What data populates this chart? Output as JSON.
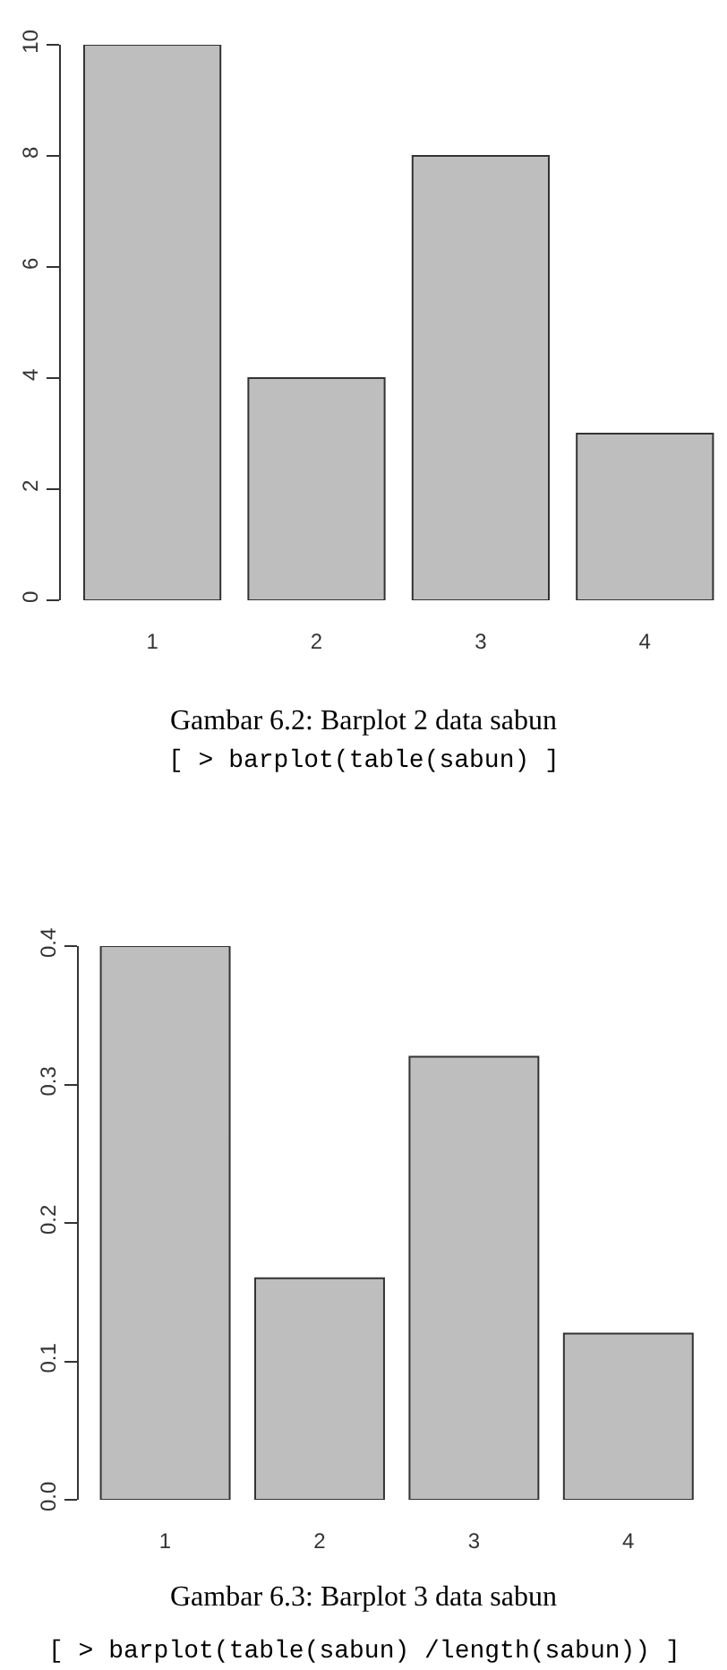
{
  "chart_data": [
    {
      "type": "bar",
      "categories": [
        "1",
        "2",
        "3",
        "4"
      ],
      "values": [
        10,
        4,
        8,
        3
      ],
      "color": "#bebebe",
      "ylim": [
        0,
        10
      ],
      "yticks": [
        0,
        2,
        4,
        6,
        8,
        10
      ],
      "annotations": [
        "Gambar 6.2: Barplot 2 data sabun",
        "[ > barplot(table(sabun) ]"
      ]
    },
    {
      "type": "bar",
      "categories": [
        "1",
        "2",
        "3",
        "4"
      ],
      "values": [
        0.4,
        0.16,
        0.32,
        0.12
      ],
      "color": "#bebebe",
      "ylim": [
        0,
        0.4
      ],
      "yticks": [
        {
          "value": 0,
          "label": "0.0"
        },
        0.1,
        0.2,
        0.3,
        0.4
      ],
      "annotations": [
        "Gambar 6.3: Barplot 3 data sabun",
        "[ > barplot(table(sabun) /length(sabun)) ]"
      ]
    }
  ]
}
